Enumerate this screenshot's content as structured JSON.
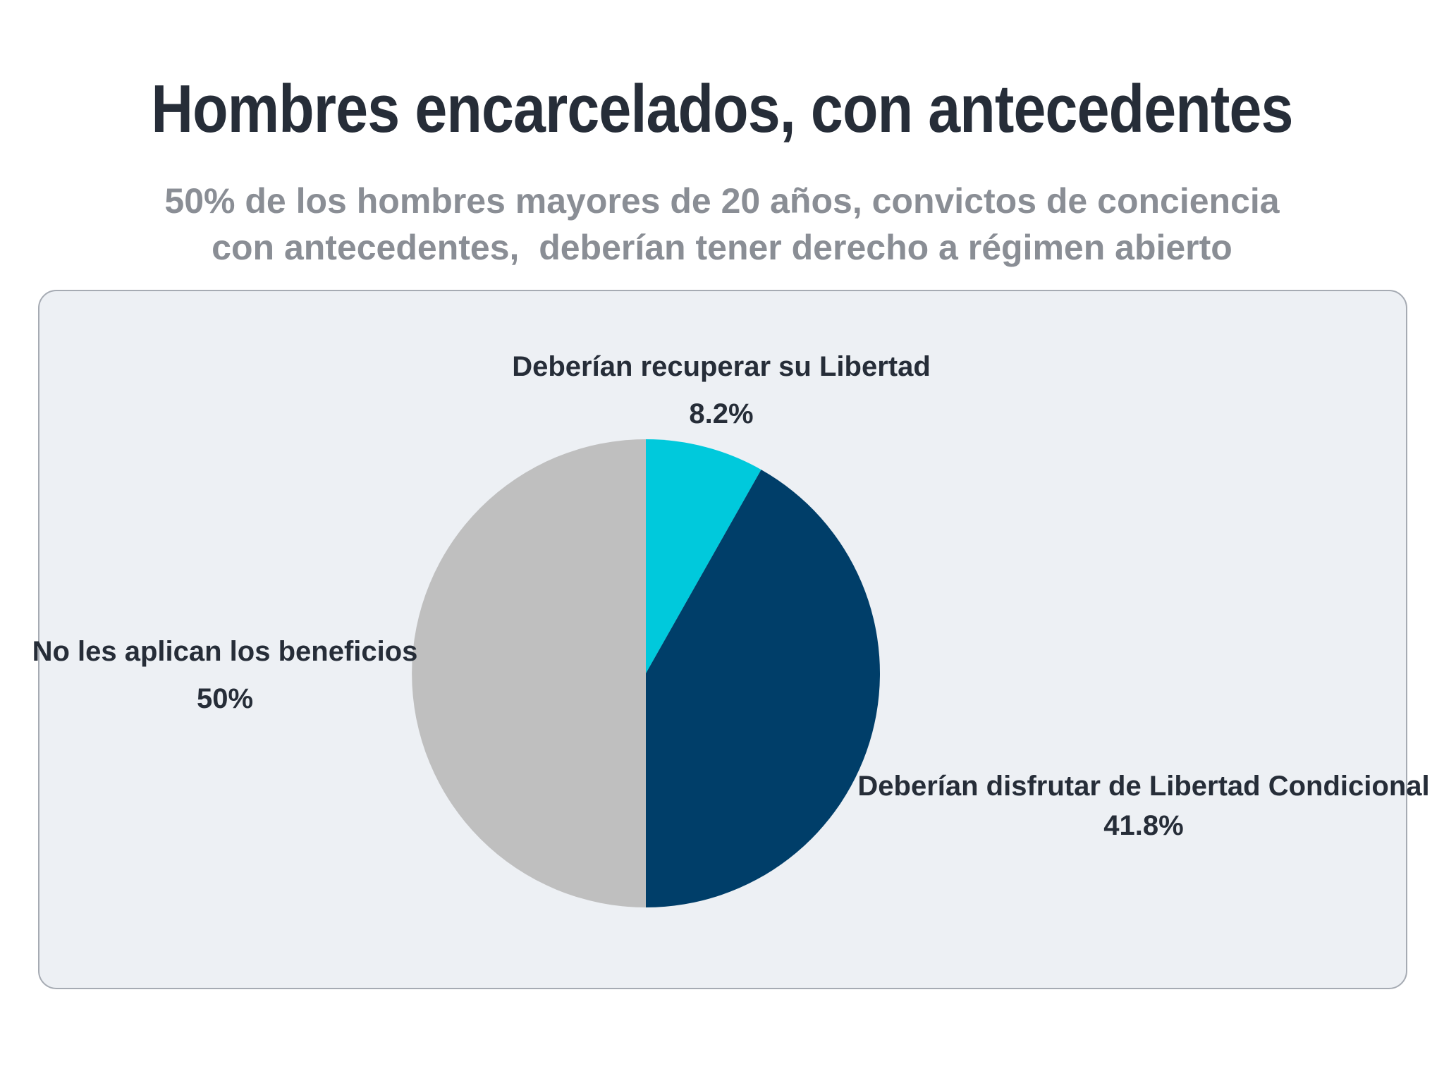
{
  "header": {
    "title": "Hombres encarcelados, con antecedentes",
    "subtitle_line1": "50% de los hombres mayores de 20 años, convictos de conciencia",
    "subtitle_line2": "con antecedentes,  deberían tener derecho a régimen abierto"
  },
  "chart_data": {
    "type": "pie",
    "title": "Hombres encarcelados, con antecedentes",
    "subtitle": "50% de los hombres mayores de 20 años, convictos de conciencia con antecedentes,  deberían tener derecho a régimen abierto",
    "start_angle": "12 o'clock, clockwise",
    "legend": "none (labels next to slices)",
    "slices": [
      {
        "label": "Deberían recuperar su Libertad",
        "value": 8.2,
        "value_label": "8.2%",
        "color": "#00c9dc"
      },
      {
        "label": "Deberían disfrutar de Libertad Condicional",
        "value": 41.8,
        "value_label": "41.8%",
        "color": "#003e69"
      },
      {
        "label": "No les aplican los beneficios",
        "value": 50,
        "value_label": "50%",
        "color": "#bfbfbf"
      }
    ]
  },
  "colors": {
    "title": "#262d38",
    "subtitle": "#8a8e95",
    "panel_background": "#edf0f4",
    "panel_border": "#a6abb3"
  }
}
